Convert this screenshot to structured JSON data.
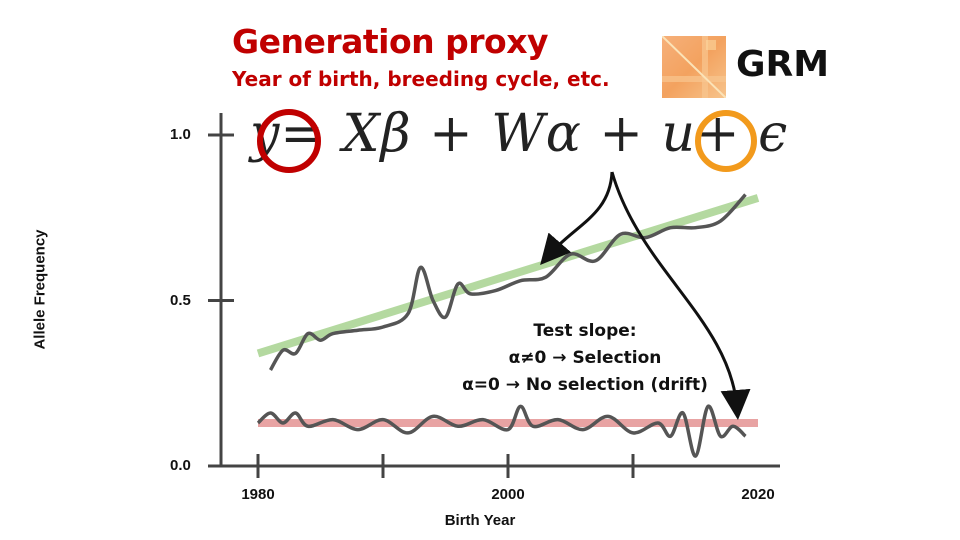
{
  "header": {
    "title": "Generation proxy",
    "subtitle": "Year of birth, breeding cycle, etc.",
    "grm_label": "GRM"
  },
  "equation": {
    "lhs": "y",
    "eq": "=",
    "term1": "Xβ",
    "plus1": "+",
    "term2a": "W",
    "term2b": "α",
    "plus2": "+",
    "term3": "u",
    "plus3": "+",
    "term4": "ϵ"
  },
  "annotation": {
    "line1": "Test slope:",
    "line2": "α≠0 → Selection",
    "line3": "α=0 → No selection (drift)"
  },
  "colors": {
    "title": "#c00000",
    "highlight_y": "#c00000",
    "highlight_u": "#f29a1c",
    "selection_fit": "#b4d9a0",
    "drift_fit": "#e8a3a3",
    "trajectory": "#555555"
  },
  "chart_data": {
    "type": "line",
    "xlabel": "Birth Year",
    "ylabel": "Allele Frequency",
    "x_ticks": [
      "1980",
      "2000",
      "2020"
    ],
    "y_ticks": [
      "0.0",
      "0.5",
      "1.0"
    ],
    "xlim": [
      1980,
      2020
    ],
    "ylim": [
      0,
      1
    ],
    "series": [
      {
        "x": [
          1981,
          1982,
          1983,
          1984,
          1985,
          1986,
          1988,
          1990,
          1992,
          1993,
          1994,
          1995,
          1996,
          1997,
          1999,
          2001,
          2003,
          2005,
          2007,
          2009,
          2011,
          2013,
          2015,
          2017,
          2019
        ],
        "values": [
          0.29,
          0.35,
          0.34,
          0.4,
          0.38,
          0.4,
          0.41,
          0.42,
          0.46,
          0.6,
          0.5,
          0.45,
          0.55,
          0.52,
          0.53,
          0.56,
          0.57,
          0.64,
          0.62,
          0.7,
          0.69,
          0.72,
          0.72,
          0.74,
          0.82
        ]
      },
      {
        "x": [
          1980,
          1981,
          1982,
          1983,
          1984,
          1986,
          1988,
          1990,
          1992,
          1994,
          1996,
          1998,
          2000,
          2001,
          2002,
          2004,
          2006,
          2008,
          2010,
          2012,
          2013,
          2014,
          2015,
          2016,
          2017,
          2018,
          2019
        ],
        "values": [
          0.13,
          0.16,
          0.13,
          0.16,
          0.12,
          0.14,
          0.11,
          0.14,
          0.1,
          0.15,
          0.12,
          0.14,
          0.11,
          0.18,
          0.12,
          0.14,
          0.11,
          0.15,
          0.1,
          0.13,
          0.09,
          0.16,
          0.03,
          0.18,
          0.09,
          0.12,
          0.09
        ]
      },
      {
        "x": [
          1980,
          2020
        ],
        "values": [
          0.34,
          0.81
        ]
      },
      {
        "x": [
          1980,
          2020
        ],
        "values": [
          0.13,
          0.13
        ]
      }
    ]
  }
}
